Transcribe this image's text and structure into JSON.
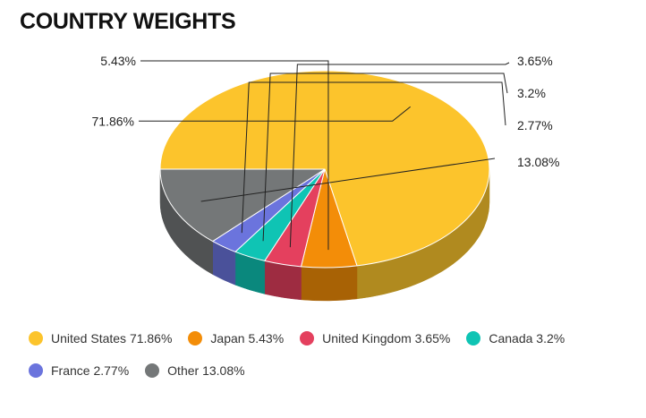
{
  "title": "COUNTRY WEIGHTS",
  "chart_data": {
    "type": "pie",
    "title": "COUNTRY WEIGHTS",
    "slices": [
      {
        "label": "United States",
        "value": 71.86,
        "value_label": "71.86%",
        "legend": "United States 71.86%",
        "color": "#fcc42c",
        "side_color": "#b08a1f"
      },
      {
        "label": "Japan",
        "value": 5.43,
        "value_label": "5.43%",
        "legend": "Japan 5.43%",
        "color": "#f38d08",
        "side_color": "#a86205"
      },
      {
        "label": "United Kingdom",
        "value": 3.65,
        "value_label": "3.65%",
        "legend": "United Kingdom 3.65%",
        "color": "#e4405e",
        "side_color": "#9e2c41"
      },
      {
        "label": "Canada",
        "value": 3.2,
        "value_label": "3.2%",
        "legend": "Canada 3.2%",
        "color": "#0fc4b4",
        "side_color": "#0a887d"
      },
      {
        "label": "France",
        "value": 2.77,
        "value_label": "2.77%",
        "legend": "France 2.77%",
        "color": "#6b74dd",
        "side_color": "#4a519a"
      },
      {
        "label": "Other",
        "value": 13.08,
        "value_label": "13.08%",
        "legend": "Other 13.08%",
        "color": "#747778",
        "side_color": "#505253"
      }
    ],
    "legend_position": "bottom"
  }
}
